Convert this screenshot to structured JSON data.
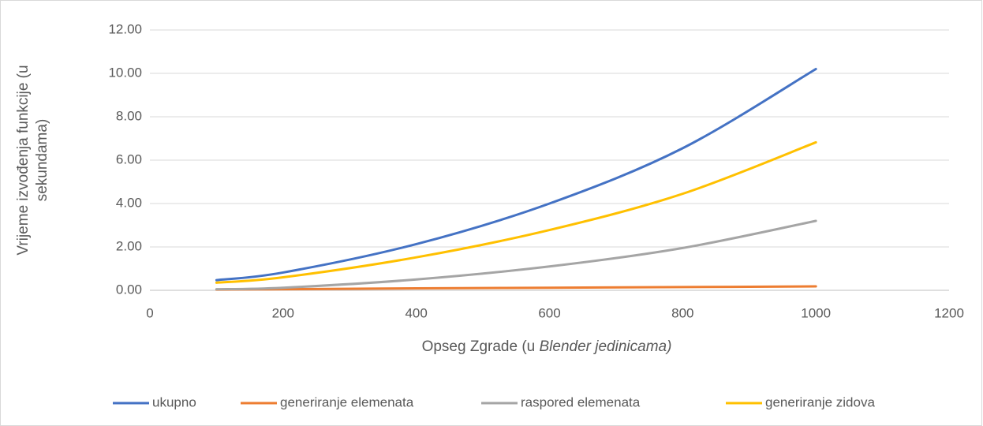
{
  "chart_data": {
    "type": "line",
    "x_label": {
      "text": "Opseg Zgrade (u",
      "italic": "Blender jedinicama)"
    },
    "y_label": [
      "Vrijeme izvođenja funkcije (u",
      "sekundama)"
    ],
    "x": [
      100,
      200,
      400,
      600,
      800,
      1000
    ],
    "series": [
      {
        "name": "ukupno",
        "color": "#4472c4",
        "values": [
          0.47,
          0.82,
          2.13,
          4.0,
          6.55,
          10.2
        ]
      },
      {
        "name": "generiranje elemenata",
        "color": "#ed7d31",
        "values": [
          0.03,
          0.05,
          0.09,
          0.12,
          0.15,
          0.18
        ]
      },
      {
        "name": "raspored elemenata",
        "color": "#a5a5a5",
        "values": [
          0.05,
          0.12,
          0.5,
          1.1,
          1.95,
          3.2
        ]
      },
      {
        "name": "generiranje zidova",
        "color": "#ffc000",
        "values": [
          0.35,
          0.6,
          1.52,
          2.78,
          4.45,
          6.82
        ]
      }
    ],
    "xlim": [
      0,
      1200
    ],
    "xticks": [
      0,
      200,
      400,
      600,
      800,
      1000,
      1200
    ],
    "ylim": [
      0,
      12
    ],
    "yticks": [
      {
        "value": 0,
        "label": "0.00"
      },
      {
        "value": 2,
        "label": "2.00"
      },
      {
        "value": 4,
        "label": "4.00"
      },
      {
        "value": 6,
        "label": "6.00"
      },
      {
        "value": 8,
        "label": "8.00"
      },
      {
        "value": 10,
        "label": "10.00"
      },
      {
        "value": 12,
        "label": "12.00"
      }
    ],
    "grid": true,
    "legend": "bottom"
  }
}
